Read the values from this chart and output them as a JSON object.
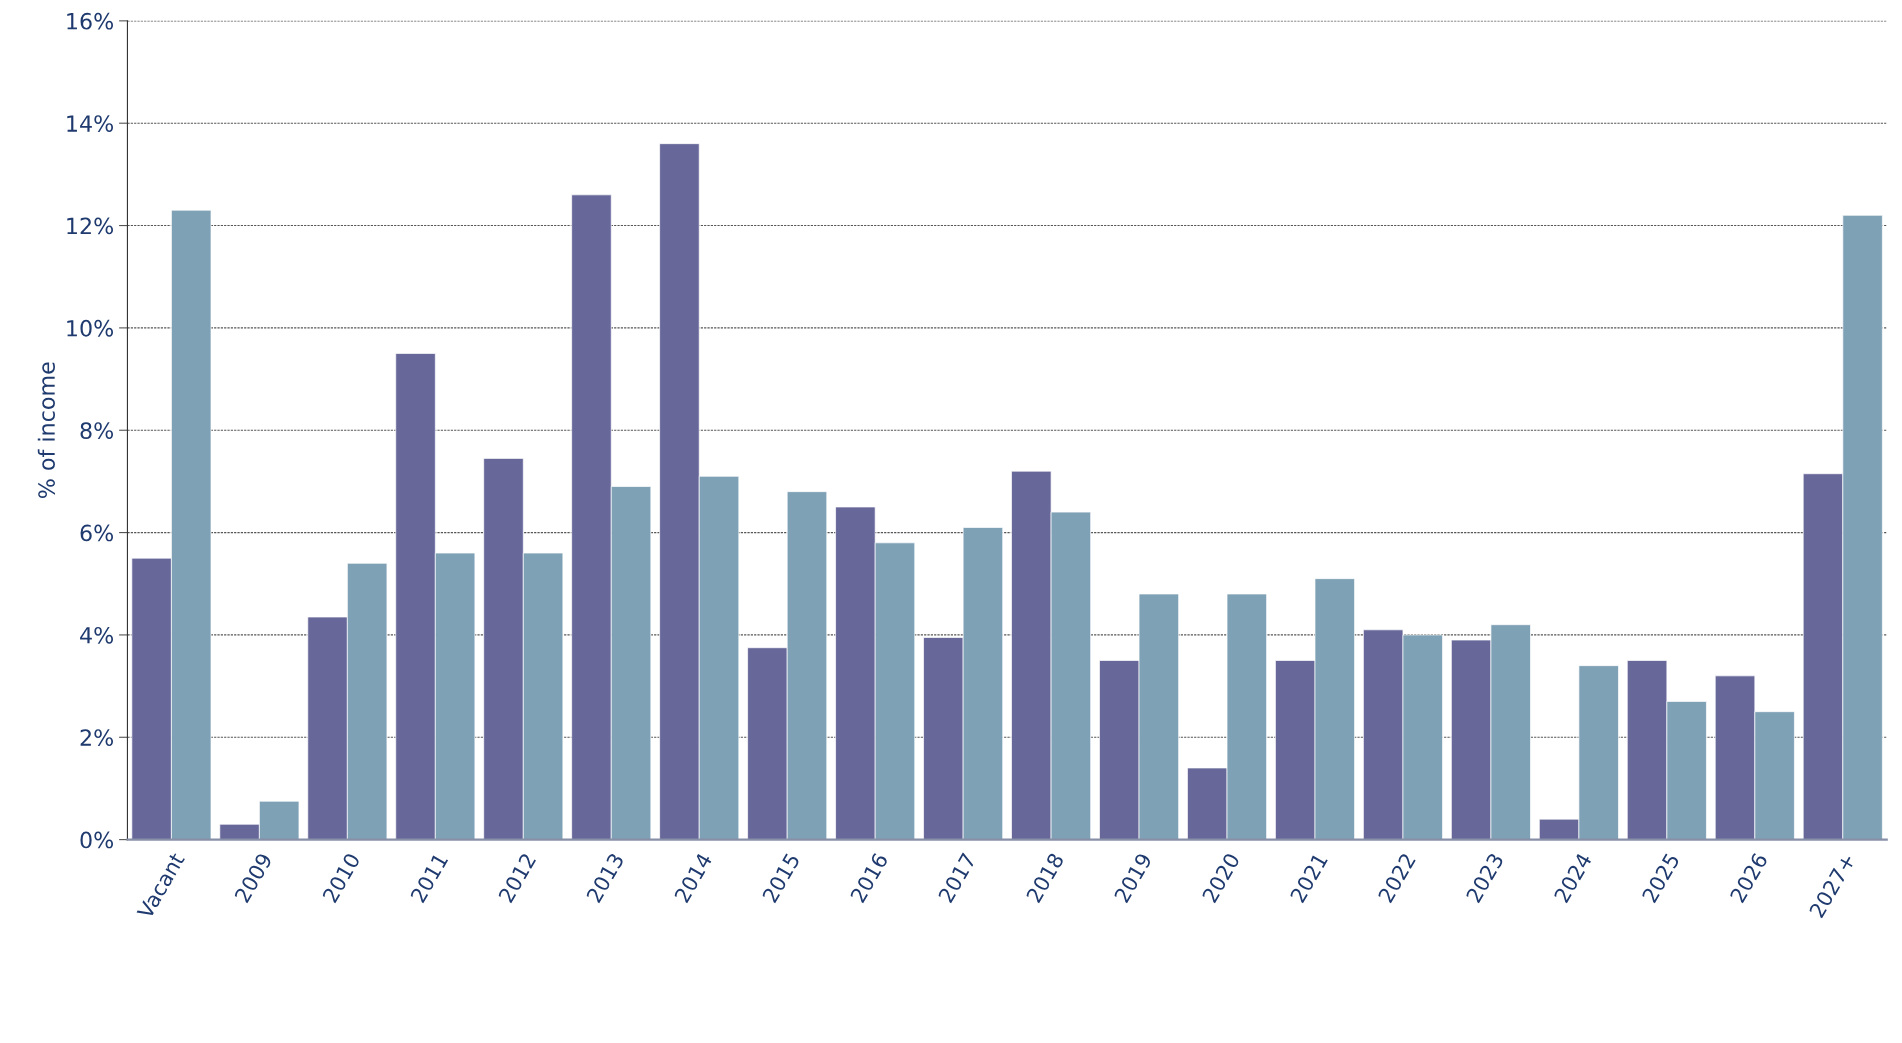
{
  "chart_data": {
    "type": "bar",
    "ylabel": "% of income",
    "categories": [
      "Vacant",
      "2009",
      "2010",
      "2011",
      "2012",
      "2013",
      "2014",
      "2015",
      "2016",
      "2017",
      "2018",
      "2019",
      "2020",
      "2021",
      "2022",
      "2023",
      "2024",
      "2025",
      "2026",
      "2027+"
    ],
    "series": [
      {
        "color": "#67679a",
        "values": [
          5.5,
          0.3,
          4.35,
          9.5,
          7.45,
          12.6,
          13.6,
          3.75,
          6.5,
          3.95,
          7.2,
          3.5,
          1.4,
          3.5,
          4.1,
          3.9,
          0.4,
          3.5,
          3.2,
          7.15
        ]
      },
      {
        "color": "#7fa1b5",
        "values": [
          12.3,
          0.75,
          5.4,
          5.6,
          5.6,
          6.9,
          7.1,
          6.8,
          5.8,
          6.1,
          6.4,
          4.8,
          4.8,
          5.1,
          4.0,
          4.2,
          3.4,
          2.7,
          2.5,
          12.2
        ]
      }
    ],
    "ylim": [
      0,
      16
    ],
    "yticks": [
      {
        "value": 0,
        "label": "0%"
      },
      {
        "value": 2,
        "label": "2%"
      },
      {
        "value": 4,
        "label": "4%"
      },
      {
        "value": 6,
        "label": "6%"
      },
      {
        "value": 8,
        "label": "8%"
      },
      {
        "value": 10,
        "label": "10%"
      },
      {
        "value": 12,
        "label": "12%"
      },
      {
        "value": 14,
        "label": "14%"
      },
      {
        "value": 16,
        "label": "16%"
      }
    ],
    "grid": "y"
  }
}
